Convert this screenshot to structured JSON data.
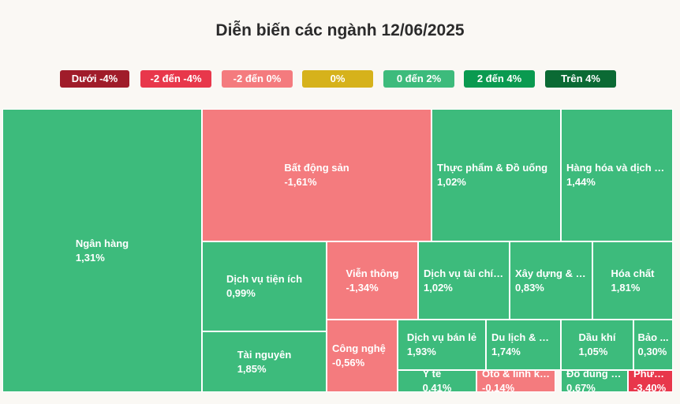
{
  "chart_data": {
    "type": "treemap",
    "title": "Diễn biến các ngành 12/06/2025",
    "legend": [
      {
        "label": "Dưới -4%",
        "color": "#a01c2a"
      },
      {
        "label": "-2 đến -4%",
        "color": "#e8374b"
      },
      {
        "label": "-2 đến 0%",
        "color": "#f47b7e"
      },
      {
        "label": "0%",
        "color": "#d6b21b"
      },
      {
        "label": "0 đến 2%",
        "color": "#3dbb7c"
      },
      {
        "label": "2 đến 4%",
        "color": "#0a9a50"
      },
      {
        "label": "Trên 4%",
        "color": "#0b6a34"
      }
    ],
    "sectors": [
      {
        "name": "Ngân hàng",
        "change": "1,31%",
        "color": "#3dbb7c"
      },
      {
        "name": "Bất động sản",
        "change": "-1,61%",
        "color": "#f47b7e"
      },
      {
        "name": "Thực phẩm & Đồ uống",
        "change": "1,02%",
        "color": "#3dbb7c"
      },
      {
        "name": "Hàng hóa và dịch v...",
        "change": "1,44%",
        "color": "#3dbb7c"
      },
      {
        "name": "Dịch vụ tiện ích",
        "change": "0,99%",
        "color": "#3dbb7c"
      },
      {
        "name": "Viễn thông",
        "change": "-1,34%",
        "color": "#f47b7e"
      },
      {
        "name": "Dịch vụ tài chính",
        "change": "1,02%",
        "color": "#3dbb7c"
      },
      {
        "name": "Xây dựng & V...",
        "change": "0,83%",
        "color": "#3dbb7c"
      },
      {
        "name": "Hóa chất",
        "change": "1,81%",
        "color": "#3dbb7c"
      },
      {
        "name": "Tài nguyên",
        "change": "1,85%",
        "color": "#3dbb7c"
      },
      {
        "name": "Công nghệ",
        "change": "-0,56%",
        "color": "#f47b7e"
      },
      {
        "name": "Dịch vụ bán lẻ",
        "change": "1,93%",
        "color": "#3dbb7c"
      },
      {
        "name": "Du lịch & Gi...",
        "change": "1,74%",
        "color": "#3dbb7c"
      },
      {
        "name": "Dầu khí",
        "change": "1,05%",
        "color": "#3dbb7c"
      },
      {
        "name": "Bảo ...",
        "change": "0,30%",
        "color": "#3dbb7c"
      },
      {
        "name": "Y tế",
        "change": "0,41%",
        "color": "#3dbb7c"
      },
      {
        "name": "Ôtô & linh ki...",
        "change": "-0,14%",
        "color": "#f47b7e"
      },
      {
        "name": "Đồ dùng cá nhân và đồ gia dụng",
        "change": "0,67%",
        "color": "#3dbb7c"
      },
      {
        "name": "Phươ...",
        "change": "-3,40%",
        "color": "#e8374b"
      }
    ]
  }
}
